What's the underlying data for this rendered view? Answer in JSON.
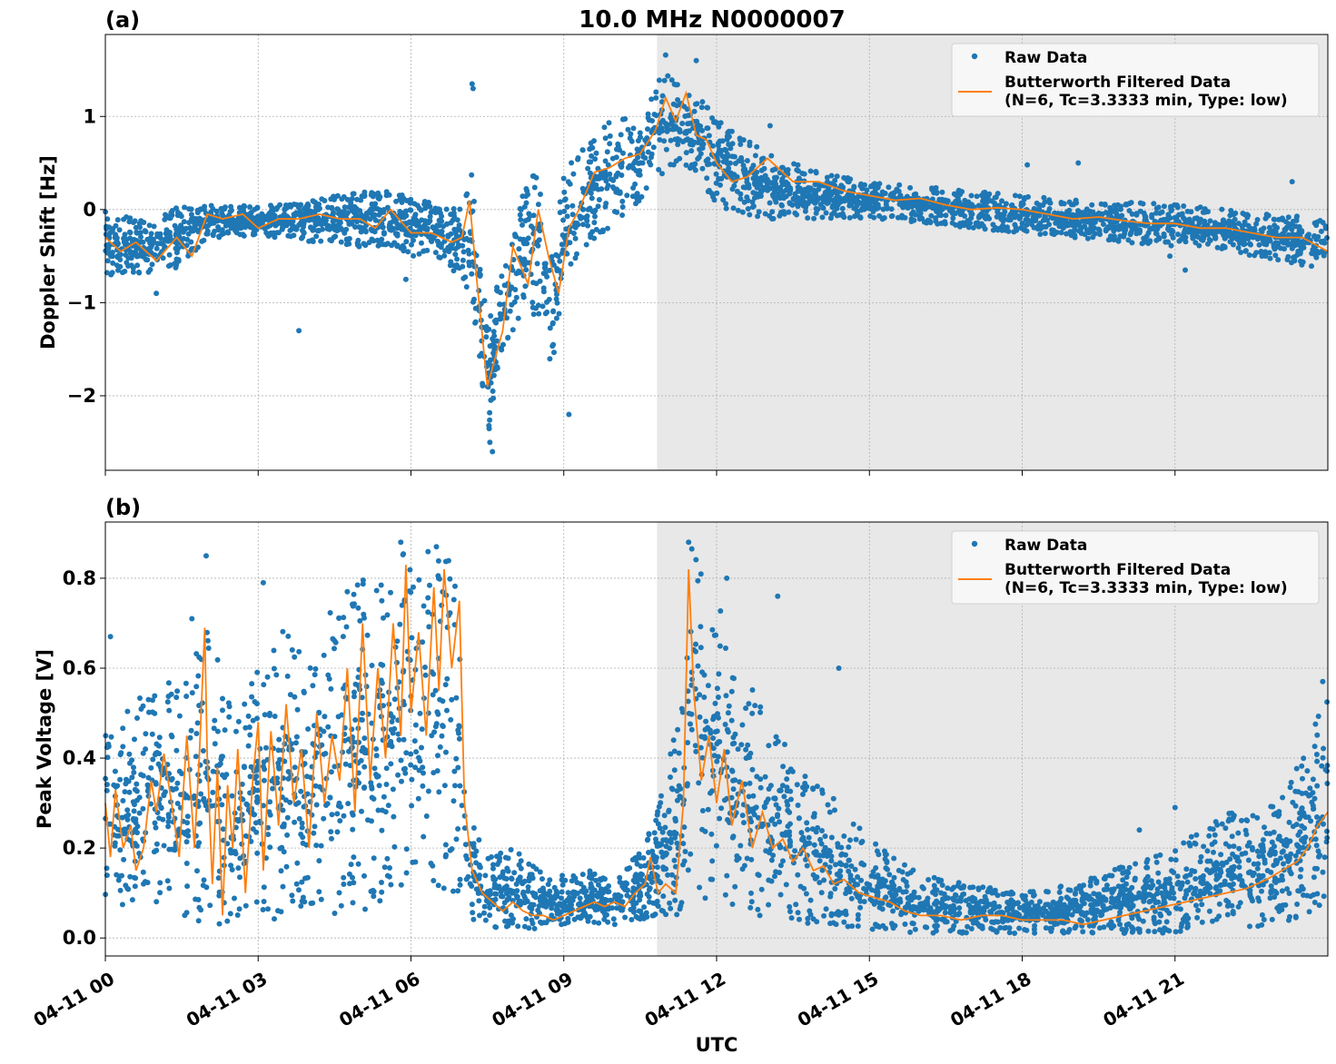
{
  "figure": {
    "title": "10.0 MHz N0000007",
    "xlabel": "UTC"
  },
  "colors": {
    "raw": "#1f77b4",
    "filtered": "#ff7f0e",
    "shade": "#e8e8e8",
    "grid": "#b0b0b0"
  },
  "chart_data": [
    {
      "type": "scatter",
      "panel_label": "(a)",
      "title": "10.0 MHz N0000007",
      "xlabel": "",
      "ylabel": "Doppler Shift [Hz]",
      "xlim": [
        0,
        24
      ],
      "ylim": [
        -2.8,
        1.88
      ],
      "yticks": [
        {
          "value": 1,
          "label": "1"
        },
        {
          "value": 0,
          "label": "0"
        },
        {
          "value": -1,
          "label": "−1"
        },
        {
          "value": -2,
          "label": "−2"
        }
      ],
      "grid": true,
      "legend_position": "top-right",
      "shaded_interval_hours": [
        10.83,
        24
      ],
      "series": [
        {
          "name": "Raw Data",
          "style": "dots",
          "band_x": [
            0,
            0.5,
            1,
            1.5,
            2,
            2.5,
            3,
            3.5,
            4,
            4.5,
            5,
            5.5,
            6,
            6.5,
            7,
            7.25,
            7.5,
            7.75,
            8,
            8.25,
            8.5,
            8.75,
            9,
            9.5,
            10,
            10.5,
            10.83,
            11.2,
            11.5,
            12,
            12.5,
            13,
            14,
            15,
            16,
            17,
            18,
            19,
            20,
            21,
            22,
            23,
            24
          ],
          "band_low": [
            -0.7,
            -0.7,
            -0.75,
            -0.6,
            -0.3,
            -0.3,
            -0.3,
            -0.3,
            -0.35,
            -0.35,
            -0.4,
            -0.4,
            -0.5,
            -0.55,
            -0.75,
            -1.2,
            -2.5,
            -1.6,
            -1.3,
            -1.0,
            -1.2,
            -2.0,
            -0.9,
            -0.4,
            -0.2,
            0.05,
            0.3,
            0.5,
            0.35,
            0.05,
            -0.05,
            -0.1,
            -0.1,
            -0.1,
            -0.15,
            -0.2,
            -0.25,
            -0.3,
            -0.35,
            -0.4,
            -0.45,
            -0.55,
            -0.65
          ],
          "band_high": [
            0.0,
            -0.05,
            -0.1,
            0.05,
            0.05,
            0.05,
            0.05,
            0.05,
            0.1,
            0.15,
            0.2,
            0.2,
            0.15,
            0.05,
            0.0,
            0.5,
            -1.2,
            -0.7,
            -0.3,
            0.3,
            0.5,
            -0.4,
            0.4,
            0.8,
            1.0,
            1.1,
            1.5,
            1.45,
            1.3,
            1.0,
            0.8,
            0.6,
            0.4,
            0.3,
            0.25,
            0.2,
            0.15,
            0.1,
            0.1,
            0.05,
            0.0,
            -0.05,
            -0.1
          ],
          "outliers": [
            [
              7.2,
              1.35
            ],
            [
              7.22,
              1.3
            ],
            [
              11.0,
              1.66
            ],
            [
              11.6,
              1.6
            ],
            [
              13.05,
              0.9
            ],
            [
              7.6,
              -2.6
            ],
            [
              7.55,
              -2.5
            ],
            [
              9.1,
              -2.2
            ],
            [
              3.8,
              -1.3
            ],
            [
              5.9,
              -0.75
            ],
            [
              1.0,
              -0.9
            ],
            [
              19.1,
              0.5
            ],
            [
              18.1,
              0.48
            ],
            [
              23.3,
              0.3
            ],
            [
              20.9,
              -0.5
            ],
            [
              21.2,
              -0.65
            ]
          ]
        },
        {
          "name": "Butterworth Filtered Data\n(N=6, Tc=3.3333 min, Type: low)",
          "style": "line",
          "x": [
            0,
            0.3,
            0.6,
            1.0,
            1.4,
            1.7,
            2.0,
            2.3,
            2.7,
            3.0,
            3.4,
            3.8,
            4.2,
            4.6,
            5.0,
            5.3,
            5.6,
            6.0,
            6.4,
            6.8,
            7.0,
            7.15,
            7.3,
            7.5,
            7.6,
            7.8,
            8.0,
            8.3,
            8.5,
            8.7,
            8.9,
            9.1,
            9.3,
            9.6,
            9.9,
            10.2,
            10.5,
            10.8,
            11.0,
            11.2,
            11.4,
            11.6,
            11.8,
            12.0,
            12.3,
            12.6,
            13.0,
            13.5,
            14.0,
            14.5,
            15.0,
            15.5,
            16.0,
            16.5,
            17.0,
            17.5,
            18.0,
            18.5,
            19.0,
            19.5,
            20.0,
            20.5,
            21.0,
            21.5,
            22.0,
            22.5,
            23.0,
            23.5,
            24.0
          ],
          "y": [
            -0.3,
            -0.45,
            -0.35,
            -0.55,
            -0.3,
            -0.5,
            -0.05,
            -0.1,
            -0.05,
            -0.2,
            -0.1,
            -0.1,
            -0.05,
            -0.1,
            -0.1,
            -0.2,
            0.0,
            -0.25,
            -0.25,
            -0.35,
            -0.3,
            0.1,
            -0.8,
            -1.9,
            -1.7,
            -1.3,
            -0.4,
            -0.8,
            0.0,
            -0.5,
            -0.9,
            -0.2,
            0.0,
            0.4,
            0.45,
            0.55,
            0.6,
            0.85,
            1.2,
            0.95,
            1.25,
            0.8,
            0.75,
            0.5,
            0.3,
            0.35,
            0.55,
            0.3,
            0.3,
            0.2,
            0.15,
            0.1,
            0.12,
            0.05,
            0.0,
            0.02,
            0.0,
            -0.05,
            -0.1,
            -0.08,
            -0.12,
            -0.15,
            -0.15,
            -0.2,
            -0.2,
            -0.25,
            -0.3,
            -0.3,
            -0.45
          ]
        }
      ]
    },
    {
      "type": "scatter",
      "panel_label": "(b)",
      "title": "",
      "xlabel": "UTC",
      "ylabel": "Peak Voltage [V]",
      "xlim": [
        0,
        24
      ],
      "ylim": [
        -0.04,
        0.925
      ],
      "xticks": [
        {
          "value": 0,
          "label": "04-11 00"
        },
        {
          "value": 3,
          "label": "04-11 03"
        },
        {
          "value": 6,
          "label": "04-11 06"
        },
        {
          "value": 9,
          "label": "04-11 09"
        },
        {
          "value": 12,
          "label": "04-11 12"
        },
        {
          "value": 15,
          "label": "04-11 15"
        },
        {
          "value": 18,
          "label": "04-11 18"
        },
        {
          "value": 21,
          "label": "04-11 21"
        }
      ],
      "yticks": [
        {
          "value": 0.8,
          "label": "0.8"
        },
        {
          "value": 0.6,
          "label": "0.6"
        },
        {
          "value": 0.4,
          "label": "0.4"
        },
        {
          "value": 0.2,
          "label": "0.2"
        },
        {
          "value": 0.0,
          "label": "0.0"
        }
      ],
      "grid": true,
      "legend_position": "top-right",
      "shaded_interval_hours": [
        10.83,
        24
      ],
      "series": [
        {
          "name": "Raw Data",
          "style": "dots",
          "band_x": [
            0,
            0.5,
            1,
            1.5,
            2,
            2.5,
            3,
            3.5,
            4,
            4.5,
            5,
            5.5,
            6,
            6.5,
            6.9,
            7.1,
            7.5,
            8,
            8.5,
            9,
            9.5,
            10,
            10.5,
            10.83,
            11.0,
            11.3,
            11.5,
            11.8,
            12,
            12.5,
            13,
            13.5,
            14,
            15,
            16,
            17,
            18,
            19,
            20,
            21,
            22,
            23,
            23.5,
            24
          ],
          "band_low": [
            0.05,
            0.08,
            0.08,
            0.05,
            0.03,
            0.02,
            0.02,
            0.04,
            0.06,
            0.05,
            0.06,
            0.07,
            0.1,
            0.12,
            0.08,
            0.05,
            0.02,
            0.02,
            0.02,
            0.03,
            0.03,
            0.03,
            0.04,
            0.05,
            0.05,
            0.05,
            0.1,
            0.08,
            0.06,
            0.05,
            0.04,
            0.03,
            0.03,
            0.02,
            0.01,
            0.01,
            0.01,
            0.01,
            0.01,
            0.01,
            0.02,
            0.03,
            0.04,
            0.05
          ],
          "band_high": [
            0.6,
            0.5,
            0.6,
            0.55,
            0.7,
            0.5,
            0.6,
            0.7,
            0.6,
            0.75,
            0.8,
            0.8,
            0.88,
            0.85,
            0.85,
            0.3,
            0.18,
            0.2,
            0.15,
            0.14,
            0.15,
            0.12,
            0.2,
            0.3,
            0.4,
            0.5,
            0.88,
            0.8,
            0.75,
            0.6,
            0.5,
            0.4,
            0.35,
            0.22,
            0.14,
            0.12,
            0.1,
            0.12,
            0.16,
            0.2,
            0.28,
            0.3,
            0.4,
            0.55
          ],
          "outliers": [
            [
              1.98,
              0.85
            ],
            [
              5.8,
              0.88
            ],
            [
              6.5,
              0.87
            ],
            [
              11.45,
              0.88
            ],
            [
              12.2,
              0.8
            ],
            [
              0.1,
              0.67
            ],
            [
              3.1,
              0.79
            ],
            [
              4.75,
              0.77
            ],
            [
              1.7,
              0.71
            ],
            [
              13.2,
              0.76
            ],
            [
              14.4,
              0.6
            ],
            [
              23.9,
              0.57
            ],
            [
              21.0,
              0.29
            ],
            [
              20.3,
              0.24
            ]
          ]
        },
        {
          "name": "Butterworth Filtered Data\n(N=6, Tc=3.3333 min, Type: low)",
          "style": "line",
          "x": [
            0,
            0.1,
            0.2,
            0.35,
            0.5,
            0.6,
            0.75,
            0.9,
            1.0,
            1.15,
            1.3,
            1.45,
            1.6,
            1.75,
            1.85,
            1.95,
            2.0,
            2.1,
            2.2,
            2.3,
            2.4,
            2.5,
            2.6,
            2.75,
            2.9,
            3.0,
            3.1,
            3.25,
            3.4,
            3.55,
            3.7,
            3.85,
            4.0,
            4.15,
            4.3,
            4.45,
            4.6,
            4.75,
            4.9,
            5.05,
            5.2,
            5.35,
            5.5,
            5.65,
            5.8,
            5.9,
            6.0,
            6.15,
            6.3,
            6.45,
            6.55,
            6.65,
            6.8,
            6.95,
            7.05,
            7.2,
            7.4,
            7.6,
            7.8,
            8.0,
            8.2,
            8.4,
            8.6,
            8.8,
            9.0,
            9.2,
            9.4,
            9.6,
            9.8,
            10.0,
            10.2,
            10.4,
            10.6,
            10.7,
            10.85,
            11.0,
            11.2,
            11.35,
            11.45,
            11.55,
            11.7,
            11.85,
            12.0,
            12.15,
            12.3,
            12.5,
            12.7,
            12.9,
            13.1,
            13.3,
            13.5,
            13.7,
            13.9,
            14.1,
            14.3,
            14.5,
            14.8,
            15.1,
            15.4,
            15.7,
            16.0,
            16.4,
            16.8,
            17.2,
            17.6,
            18.0,
            18.4,
            18.8,
            19.2,
            19.6,
            20.0,
            20.4,
            20.8,
            21.2,
            21.6,
            22.0,
            22.4,
            22.8,
            23.1,
            23.4,
            23.6,
            23.8,
            24.0
          ],
          "y": [
            0.3,
            0.18,
            0.33,
            0.2,
            0.25,
            0.15,
            0.2,
            0.35,
            0.28,
            0.41,
            0.3,
            0.18,
            0.45,
            0.2,
            0.42,
            0.69,
            0.4,
            0.12,
            0.38,
            0.05,
            0.34,
            0.2,
            0.42,
            0.1,
            0.36,
            0.48,
            0.15,
            0.46,
            0.25,
            0.52,
            0.3,
            0.42,
            0.2,
            0.5,
            0.3,
            0.45,
            0.35,
            0.6,
            0.28,
            0.7,
            0.35,
            0.6,
            0.4,
            0.7,
            0.45,
            0.83,
            0.5,
            0.68,
            0.45,
            0.78,
            0.55,
            0.82,
            0.6,
            0.75,
            0.3,
            0.15,
            0.1,
            0.08,
            0.06,
            0.08,
            0.06,
            0.05,
            0.05,
            0.04,
            0.05,
            0.06,
            0.07,
            0.08,
            0.07,
            0.08,
            0.07,
            0.1,
            0.12,
            0.18,
            0.1,
            0.12,
            0.1,
            0.3,
            0.82,
            0.55,
            0.35,
            0.45,
            0.3,
            0.42,
            0.25,
            0.35,
            0.2,
            0.28,
            0.2,
            0.22,
            0.17,
            0.2,
            0.15,
            0.16,
            0.12,
            0.13,
            0.1,
            0.09,
            0.08,
            0.06,
            0.05,
            0.05,
            0.04,
            0.05,
            0.05,
            0.04,
            0.04,
            0.04,
            0.03,
            0.04,
            0.05,
            0.06,
            0.07,
            0.08,
            0.09,
            0.1,
            0.11,
            0.13,
            0.15,
            0.17,
            0.2,
            0.25,
            0.28
          ]
        }
      ]
    }
  ]
}
